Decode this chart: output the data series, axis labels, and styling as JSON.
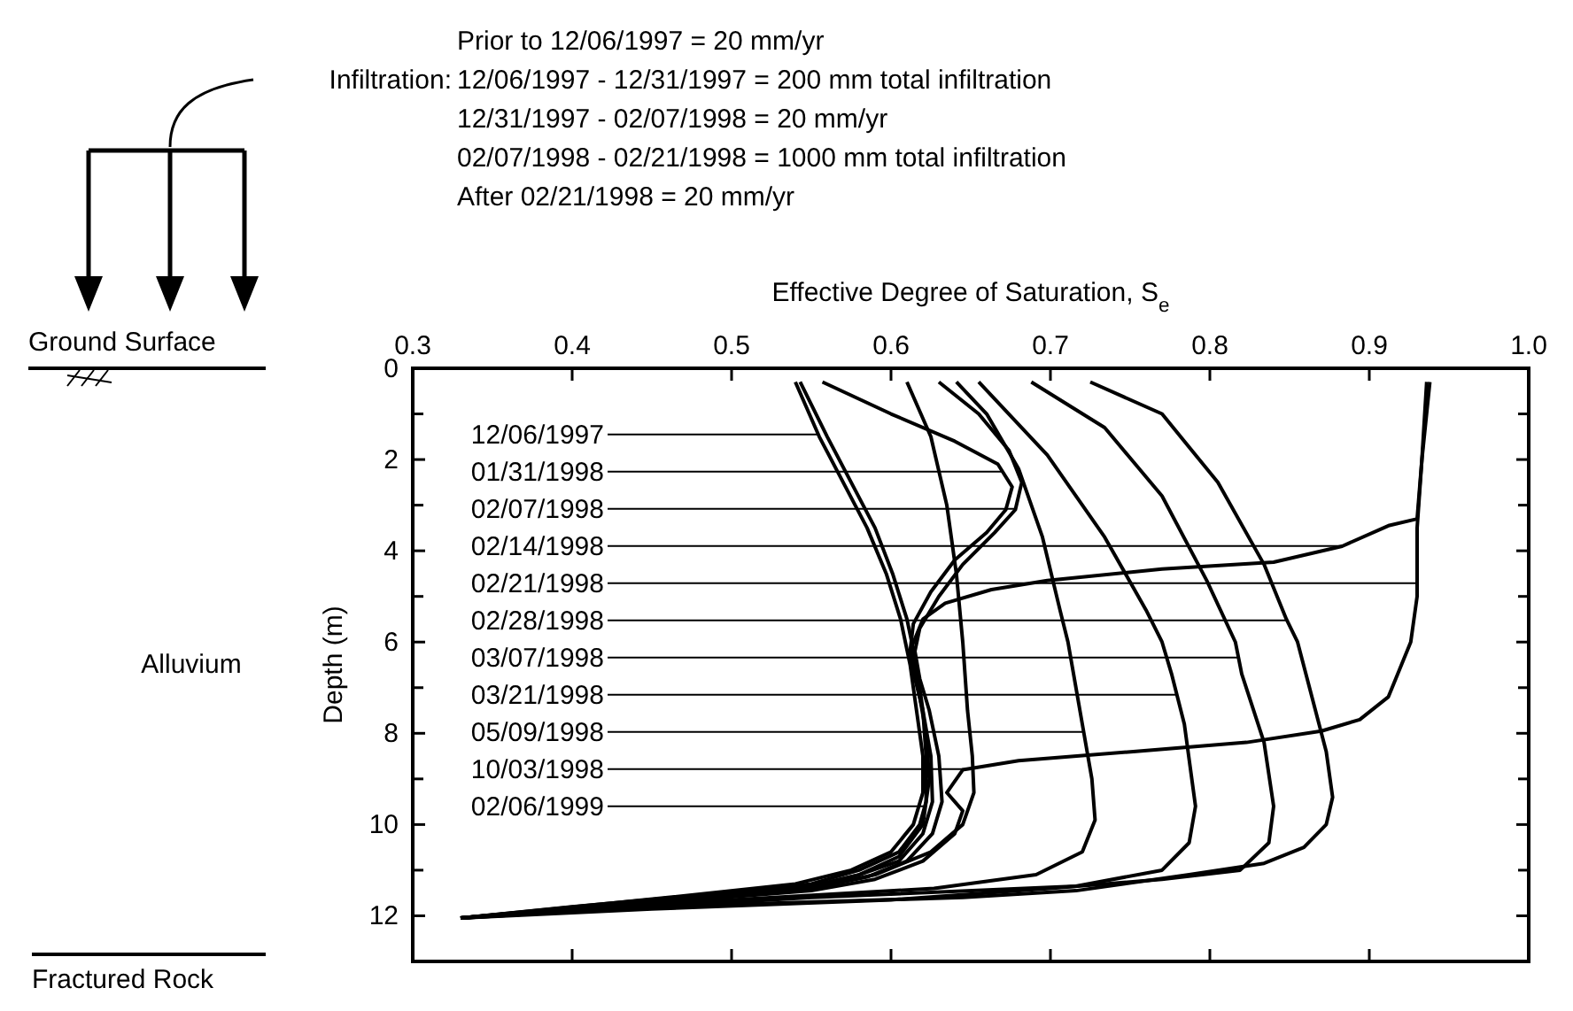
{
  "chart_data": {
    "type": "line",
    "xlabel": "Effective Degree of Saturation, S$_{e}$",
    "ylabel": "Depth (m)",
    "xlim": [
      0.3,
      1.0
    ],
    "xticks": [
      0.3,
      0.4,
      0.5,
      0.6,
      0.7,
      0.8,
      0.9,
      {
        "value": 1,
        "label": "1.0"
      }
    ],
    "ylim": [
      13,
      0
    ],
    "yticks": [
      0,
      {
        "value": 1,
        "label": null
      },
      2,
      {
        "value": 3,
        "label": null
      },
      4,
      {
        "value": 5,
        "label": null
      },
      6,
      {
        "value": 7,
        "label": null
      },
      8,
      {
        "value": 9,
        "label": null
      },
      10,
      {
        "value": 11,
        "label": null
      },
      12,
      {
        "value": 13,
        "label": null
      }
    ],
    "grid": false,
    "series": [
      {
        "name": "12/06/1997",
        "color": "#000000",
        "x": [
          0.54,
          0.555,
          0.57,
          0.585,
          0.597,
          0.606,
          0.612,
          0.616,
          0.62,
          0.62,
          0.614,
          0.6,
          0.575,
          0.54,
          0.46,
          0.33
        ],
        "values": [
          0.3,
          1.5,
          2.5,
          3.5,
          4.5,
          5.5,
          6.5,
          7.5,
          8.5,
          9.3,
          10,
          10.6,
          11,
          11.3,
          11.6,
          12.05
        ]
      },
      {
        "name": "01/31/1998",
        "color": "#000000",
        "x": [
          0.557,
          0.6,
          0.64,
          0.667,
          0.676,
          0.672,
          0.66,
          0.64,
          0.625,
          0.614,
          0.612,
          0.615,
          0.62,
          0.625,
          0.626,
          0.62,
          0.605,
          0.58,
          0.55,
          0.47,
          0.33
        ],
        "values": [
          0.3,
          1,
          1.6,
          2.1,
          2.6,
          3.1,
          3.6,
          4.2,
          4.9,
          5.6,
          6.2,
          6.8,
          7.5,
          8.5,
          9.5,
          10.2,
          10.8,
          11.1,
          11.35,
          11.6,
          12.05
        ]
      },
      {
        "name": "02/07/1998",
        "color": "#000000",
        "x": [
          0.63,
          0.655,
          0.674,
          0.682,
          0.678,
          0.665,
          0.645,
          0.63,
          0.618,
          0.615,
          0.618,
          0.624,
          0.63,
          0.632,
          0.626,
          0.61,
          0.585,
          0.55,
          0.47,
          0.33
        ],
        "values": [
          0.3,
          1,
          1.8,
          2.5,
          3.1,
          3.6,
          4.3,
          5,
          5.7,
          6.2,
          6.8,
          7.5,
          8.5,
          9.5,
          10.2,
          10.8,
          11.15,
          11.4,
          11.62,
          12.05
        ]
      },
      {
        "name": "02/14/1998",
        "color": "#000000",
        "x": [
          0.936,
          0.933,
          0.93,
          0.912,
          0.883,
          0.84,
          0.77,
          0.698,
          0.663,
          0.634,
          0.62,
          0.613,
          0.617,
          0.622,
          0.624,
          0.62,
          0.605,
          0.58,
          0.55,
          0.47,
          0.33
        ],
        "values": [
          0.3,
          2,
          3.3,
          3.45,
          3.9,
          4.25,
          4.4,
          4.65,
          4.85,
          5.15,
          5.5,
          6.1,
          7,
          8,
          9,
          10,
          10.7,
          11.1,
          11.35,
          11.6,
          12.05
        ]
      },
      {
        "name": "02/21/1998",
        "color": "#000000",
        "x": [
          0.938,
          0.933,
          0.93,
          0.93,
          0.926,
          0.912,
          0.894,
          0.87,
          0.823,
          0.752,
          0.68,
          0.645,
          0.635,
          0.645,
          0.64,
          0.62,
          0.59,
          0.55,
          0.33
        ],
        "values": [
          0.3,
          2,
          3.5,
          5,
          6,
          7.2,
          7.7,
          7.95,
          8.2,
          8.4,
          8.6,
          8.8,
          9.3,
          9.7,
          10.2,
          10.8,
          11.2,
          11.45,
          12.05
        ]
      },
      {
        "name": "02/28/1998",
        "color": "#000000",
        "x": [
          0.725,
          0.77,
          0.805,
          0.834,
          0.848,
          0.855,
          0.873,
          0.877,
          0.873,
          0.859,
          0.834,
          0.787,
          0.716,
          0.645,
          0.45,
          0.33
        ],
        "values": [
          0.3,
          1,
          2.5,
          4.3,
          5.5,
          6,
          8.4,
          9.4,
          10,
          10.5,
          10.85,
          11.1,
          11.45,
          11.6,
          11.8,
          12.05
        ]
      },
      {
        "name": "03/07/1998",
        "color": "#000000",
        "x": [
          0.688,
          0.734,
          0.77,
          0.798,
          0.816,
          0.82,
          0.834,
          0.84,
          0.837,
          0.819,
          0.77,
          0.7,
          0.6,
          0.45,
          0.33
        ],
        "values": [
          0.3,
          1.3,
          2.8,
          4.65,
          6,
          6.7,
          8.2,
          9.6,
          10.4,
          11,
          11.2,
          11.4,
          11.65,
          11.85,
          12.05
        ]
      },
      {
        "name": "03/21/1998",
        "color": "#000000",
        "x": [
          0.655,
          0.698,
          0.734,
          0.76,
          0.77,
          0.776,
          0.784,
          0.791,
          0.787,
          0.77,
          0.716,
          0.55,
          0.33
        ],
        "values": [
          0.3,
          1.9,
          3.7,
          5.3,
          6,
          6.7,
          7.8,
          9.6,
          10.4,
          11,
          11.35,
          11.6,
          12.05
        ]
      },
      {
        "name": "05/09/1998",
        "color": "#000000",
        "x": [
          0.641,
          0.66,
          0.68,
          0.695,
          0.706,
          0.711,
          0.72,
          0.726,
          0.728,
          0.72,
          0.691,
          0.627,
          0.45,
          0.33
        ],
        "values": [
          0.3,
          1,
          2.2,
          3.7,
          5.3,
          6,
          7.8,
          9,
          9.9,
          10.6,
          11.1,
          11.4,
          11.75,
          12.05
        ]
      },
      {
        "name": "10/03/1998",
        "color": "#000000",
        "x": [
          0.61,
          0.625,
          0.635,
          0.641,
          0.645,
          0.648,
          0.651,
          0.652,
          0.645,
          0.625,
          0.59,
          0.55,
          0.45,
          0.33
        ],
        "values": [
          0.3,
          1.5,
          3,
          4.5,
          6,
          7.5,
          8.5,
          9.3,
          10,
          10.6,
          11.1,
          11.4,
          11.7,
          12.05
        ]
      },
      {
        "name": "02/06/1999",
        "color": "#000000",
        "x": [
          0.543,
          0.56,
          0.575,
          0.59,
          0.601,
          0.61,
          0.616,
          0.62,
          0.622,
          0.622,
          0.618,
          0.605,
          0.58,
          0.55,
          0.48,
          0.4,
          0.33
        ],
        "values": [
          0.3,
          1.5,
          2.5,
          3.5,
          4.5,
          5.5,
          6.5,
          7.5,
          8.5,
          9.5,
          10,
          10.6,
          11,
          11.3,
          11.55,
          11.8,
          12.05
        ]
      }
    ],
    "annotations": [
      "Prior to 12/06/1997 = 20 mm/yr",
      "Infiltration:",
      "12/06/1997 - 12/31/1997 = 200 mm total infiltration",
      "12/31/1997 - 02/07/1998 = 20 mm/yr",
      "02/07/1998 - 02/21/1998 = 1000 mm total infiltration",
      "After 02/21/1998 = 20 mm/yr",
      "Ground Surface",
      "Alluvium",
      "Fractured Rock"
    ]
  }
}
